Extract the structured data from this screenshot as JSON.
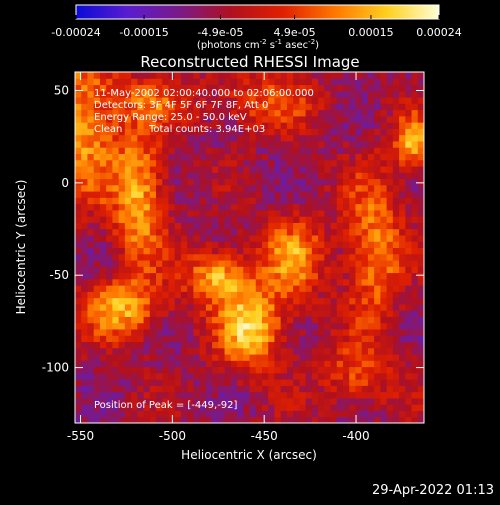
{
  "colorbar": {
    "tick_labels": [
      "-0.00024",
      "-0.00015",
      "-4.9e-05",
      "4.9e-05",
      "0.00015",
      "0.00024"
    ],
    "tick_values": [
      -0.00024,
      -0.00015,
      -4.9e-05,
      4.9e-05,
      0.00015,
      0.00024
    ],
    "range": [
      -0.00024,
      0.00024
    ],
    "units_prefix": "(photons cm",
    "units_exp1": "-2",
    "units_mid": " s",
    "units_exp2": "-1",
    "units_suffix": " asec",
    "units_exp3": "-2",
    "units_close": ")",
    "colors": [
      "#0a0ad6",
      "#5a1cd0",
      "#7a1a88",
      "#b0101e",
      "#e02000",
      "#ff7800",
      "#ffd020",
      "#ffffd8"
    ]
  },
  "header": {
    "time_range": "11-May-2002 02:00:40.000 to 02:06:00.000",
    "detectors": "Detectors: 3F 4F 5F 6F 7F 8F, Att 0",
    "energy_range": "Energy Range: 25.0 - 50.0 keV",
    "algorithm": "Clean",
    "total_counts": "Total counts: 3.94E+03"
  },
  "footer_label": "Position of Peak = [-449,-92]",
  "timestamp": "29-Apr-2022 01:13",
  "chart_data": {
    "type": "heatmap",
    "title": "Reconstructed RHESSI Image",
    "xlabel": "Heliocentric X (arcsec)",
    "ylabel": "Heliocentric Y (arcsec)",
    "xlim": [
      -553,
      -363
    ],
    "ylim": [
      -130,
      60
    ],
    "x_ticks": [
      -550,
      -500,
      -450,
      -400
    ],
    "x_tick_labels": [
      "-550",
      "-500",
      "-450",
      "-400"
    ],
    "y_ticks": [
      50,
      0,
      -50,
      -100
    ],
    "y_tick_labels": [
      "50",
      "0",
      "-50",
      "-100"
    ],
    "peak_position": [
      -449,
      -92
    ],
    "sources": [
      {
        "x": -549,
        "y": 35,
        "sx": 14,
        "sy": 30,
        "a": 0.0002
      },
      {
        "x": -518,
        "y": -8,
        "sx": 10,
        "sy": 26,
        "a": 0.00021
      },
      {
        "x": -527,
        "y": -68,
        "sx": 15,
        "sy": 11,
        "a": 0.0002
      },
      {
        "x": -476,
        "y": -50,
        "sx": 12,
        "sy": 10,
        "a": 0.00021
      },
      {
        "x": -457,
        "y": -78,
        "sx": 13,
        "sy": 16,
        "a": 0.00024
      },
      {
        "x": -434,
        "y": -40,
        "sx": 12,
        "sy": 16,
        "a": 0.00017
      },
      {
        "x": -450,
        "y": 45,
        "sx": 22,
        "sy": 11,
        "a": 0.00012
      },
      {
        "x": -390,
        "y": -35,
        "sx": 11,
        "sy": 28,
        "a": 0.00018
      },
      {
        "x": -368,
        "y": 22,
        "sx": 8,
        "sy": 10,
        "a": 0.00021
      },
      {
        "x": -400,
        "y": -105,
        "sx": 14,
        "sy": 12,
        "a": 0.00012
      },
      {
        "x": -510,
        "y": 45,
        "sx": 13,
        "sy": 9,
        "a": 0.0001
      }
    ]
  }
}
